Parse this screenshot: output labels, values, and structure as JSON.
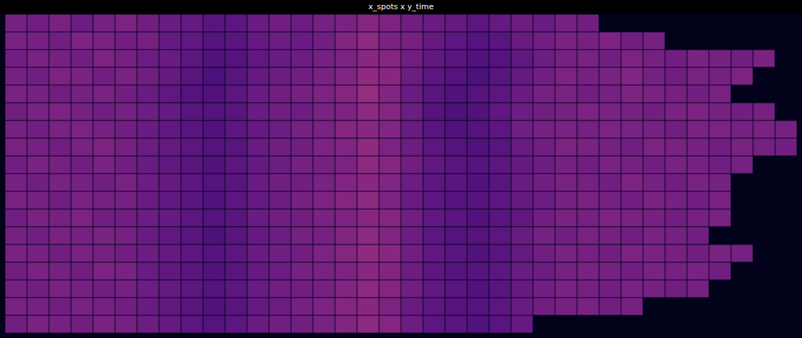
{
  "chart_data": {
    "type": "heatmap",
    "title": "x_spots x y_time",
    "color": "magma",
    "color_range": [
      0,
      100
    ],
    "tick_labels": false,
    "cells": [
      [
        34,
        33,
        35,
        32,
        34,
        36,
        33,
        31,
        30,
        27,
        28,
        31,
        33,
        32,
        34,
        35,
        38,
        36,
        33,
        31,
        30,
        28,
        30,
        32,
        31,
        34,
        33,
        null,
        null,
        null,
        null,
        null,
        null,
        null,
        null,
        null
      ],
      [
        35,
        34,
        33,
        36,
        35,
        33,
        34,
        30,
        29,
        26,
        27,
        30,
        32,
        31,
        33,
        37,
        40,
        35,
        34,
        30,
        28,
        26,
        27,
        31,
        33,
        35,
        34,
        36,
        33,
        34,
        null,
        null,
        null,
        null,
        null,
        null
      ],
      [
        33,
        35,
        34,
        33,
        36,
        34,
        32,
        31,
        28,
        25,
        26,
        29,
        31,
        32,
        34,
        36,
        39,
        38,
        33,
        29,
        27,
        25,
        26,
        29,
        32,
        34,
        35,
        33,
        36,
        34,
        33,
        35,
        34,
        33,
        35,
        null
      ],
      [
        34,
        33,
        36,
        35,
        33,
        35,
        33,
        30,
        27,
        24,
        27,
        30,
        32,
        33,
        35,
        37,
        41,
        39,
        32,
        28,
        26,
        24,
        27,
        30,
        33,
        36,
        34,
        35,
        37,
        34,
        33,
        35,
        34,
        36,
        null,
        null
      ],
      [
        35,
        34,
        33,
        34,
        35,
        33,
        31,
        29,
        26,
        25,
        28,
        31,
        33,
        34,
        36,
        38,
        42,
        37,
        31,
        27,
        25,
        26,
        28,
        31,
        34,
        35,
        33,
        34,
        36,
        35,
        34,
        33,
        35,
        null,
        null,
        null
      ],
      [
        33,
        35,
        36,
        34,
        33,
        34,
        32,
        30,
        27,
        26,
        27,
        31,
        33,
        32,
        35,
        36,
        40,
        38,
        32,
        26,
        24,
        25,
        29,
        32,
        33,
        34,
        36,
        35,
        34,
        33,
        35,
        36,
        34,
        33,
        34,
        null
      ],
      [
        34,
        33,
        35,
        36,
        34,
        33,
        31,
        29,
        27,
        25,
        28,
        30,
        32,
        34,
        35,
        38,
        39,
        37,
        31,
        27,
        25,
        26,
        28,
        33,
        34,
        35,
        34,
        36,
        35,
        34,
        33,
        35,
        36,
        34,
        35,
        34
      ],
      [
        35,
        34,
        33,
        35,
        36,
        34,
        32,
        30,
        28,
        26,
        27,
        31,
        33,
        33,
        36,
        37,
        41,
        36,
        32,
        28,
        26,
        25,
        27,
        31,
        33,
        36,
        35,
        34,
        33,
        36,
        35,
        34,
        33,
        35,
        34,
        33
      ],
      [
        33,
        35,
        34,
        33,
        35,
        33,
        31,
        29,
        27,
        25,
        28,
        30,
        32,
        34,
        34,
        36,
        40,
        38,
        33,
        29,
        27,
        26,
        28,
        30,
        32,
        34,
        33,
        35,
        34,
        33,
        35,
        34,
        33,
        34,
        null,
        null
      ],
      [
        34,
        33,
        35,
        34,
        33,
        35,
        32,
        30,
        28,
        26,
        27,
        31,
        33,
        33,
        35,
        37,
        39,
        37,
        32,
        28,
        27,
        25,
        27,
        31,
        33,
        35,
        34,
        33,
        36,
        34,
        33,
        35,
        34,
        null,
        null,
        null
      ],
      [
        35,
        34,
        33,
        35,
        34,
        34,
        31,
        29,
        27,
        25,
        28,
        30,
        32,
        34,
        36,
        38,
        40,
        36,
        31,
        28,
        26,
        26,
        28,
        30,
        32,
        34,
        35,
        34,
        33,
        35,
        34,
        33,
        35,
        null,
        null,
        null
      ],
      [
        33,
        35,
        34,
        36,
        33,
        33,
        32,
        30,
        28,
        26,
        27,
        31,
        33,
        33,
        35,
        36,
        39,
        38,
        33,
        29,
        27,
        25,
        27,
        29,
        33,
        35,
        34,
        36,
        35,
        34,
        33,
        34,
        35,
        null,
        null,
        null
      ],
      [
        34,
        33,
        35,
        34,
        35,
        34,
        31,
        29,
        27,
        24,
        27,
        30,
        32,
        34,
        34,
        37,
        40,
        37,
        32,
        28,
        26,
        26,
        28,
        31,
        34,
        33,
        35,
        34,
        33,
        35,
        34,
        33,
        null,
        null,
        null,
        null
      ],
      [
        35,
        34,
        33,
        35,
        34,
        33,
        32,
        30,
        28,
        26,
        28,
        31,
        33,
        33,
        36,
        38,
        41,
        39,
        33,
        29,
        27,
        25,
        27,
        30,
        33,
        35,
        34,
        33,
        36,
        35,
        34,
        33,
        35,
        34,
        null,
        null
      ],
      [
        33,
        35,
        34,
        33,
        36,
        35,
        31,
        29,
        27,
        25,
        27,
        30,
        32,
        34,
        35,
        36,
        39,
        37,
        32,
        28,
        26,
        26,
        28,
        31,
        32,
        34,
        35,
        34,
        33,
        35,
        34,
        35,
        33,
        null,
        null,
        null
      ],
      [
        34,
        33,
        35,
        34,
        33,
        34,
        32,
        30,
        28,
        26,
        28,
        31,
        33,
        33,
        34,
        37,
        40,
        38,
        33,
        29,
        27,
        25,
        27,
        30,
        33,
        35,
        34,
        33,
        35,
        34,
        33,
        34,
        null,
        null,
        null,
        null
      ],
      [
        35,
        34,
        33,
        35,
        34,
        33,
        31,
        29,
        27,
        25,
        27,
        30,
        32,
        34,
        36,
        38,
        39,
        36,
        31,
        28,
        26,
        26,
        28,
        31,
        33,
        34,
        35,
        33,
        34,
        null,
        null,
        null,
        null,
        null,
        null,
        null
      ],
      [
        33,
        35,
        34,
        33,
        35,
        34,
        32,
        30,
        28,
        26,
        28,
        31,
        33,
        33,
        35,
        37,
        40,
        38,
        32,
        28,
        27,
        25,
        27,
        30,
        null,
        null,
        null,
        null,
        null,
        null,
        null,
        null,
        null,
        null,
        null,
        null
      ]
    ]
  }
}
